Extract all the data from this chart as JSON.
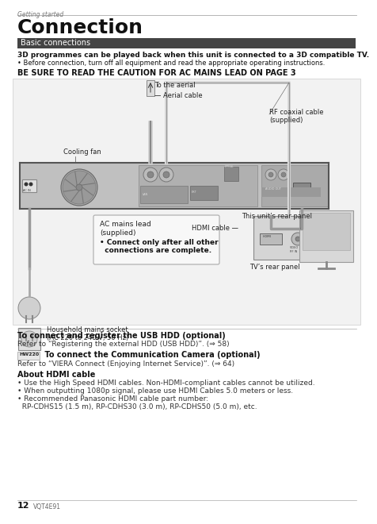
{
  "page_title": "Connection",
  "section_label": "Getting started",
  "section_header": "Basic connections",
  "bold_text": "3D programmes can be played back when this unit is connected to a 3D compatible TV.",
  "bullet1": "• Before connection, turn off all equipment and read the appropriate operating instructions.",
  "warning_text": "BE SURE TO READ THE CAUTION FOR AC MAINS LEAD ON PAGE 3",
  "label_aerial": "To the aerial",
  "label_aerial_cable": "— Aerial cable",
  "label_rf": "RF coaxial cable\n(supplied)",
  "label_cooling": "Cooling fan",
  "label_rear_panel": "This unit’s rear panel",
  "label_hdmi": "HDMI cable —",
  "label_ac_line1": "AC mains lead",
  "label_ac_line2": "(supplied)",
  "label_ac_bold": "• Connect only after all other\n  connections are complete.",
  "label_household": "Household mains socket\n(AC 220 to 240 V, 50 Hz)",
  "label_tv_rear": "TV’s rear panel",
  "section2_title": "To connect and register the USB HDD (optional)",
  "section2_text": "Refer to “Registering the external HDD (USB HDD)”. (⇒ 58)",
  "section3_badge": "HW220",
  "section3_title": " To connect the Communication Camera (optional)",
  "section3_text": "Refer to “VIERA Connect (Enjoying Internet Service)”. (⇒ 64)",
  "section4_title": "About HDMI cable",
  "section4_b1": "• Use the High Speed HDMI cables. Non-HDMI-compliant cables cannot be utilized.",
  "section4_b2": "• When outputting 1080p signal, please use HDMI Cables 5.0 meters or less.",
  "section4_b3a": "• Recommended Panasonic HDMI cable part number:",
  "section4_b3b": "  RP-CDHS15 (1.5 m), RP-CDHS30 (3.0 m), RP-CDHS50 (5.0 m), etc.",
  "footer_page": "12",
  "footer_code": "VQT4E91",
  "bg_color": "#ffffff",
  "section_bar_color": "#444444",
  "recorder_color": "#b0b0b0",
  "recorder_dark": "#888888"
}
